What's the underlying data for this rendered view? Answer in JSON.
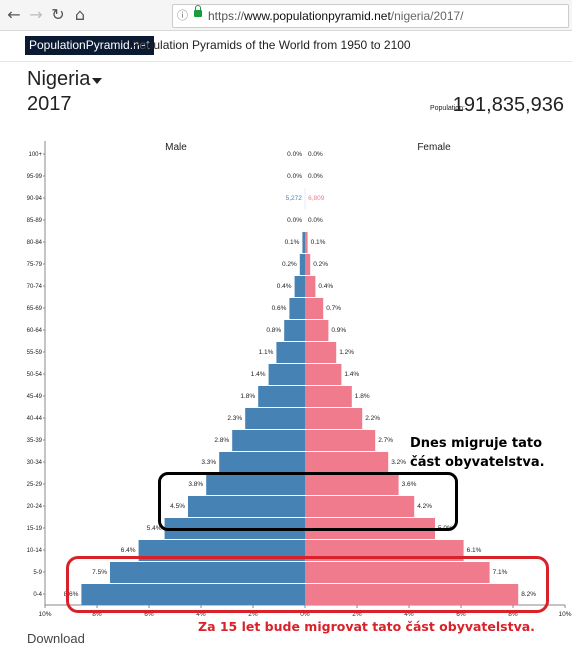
{
  "browser": {
    "back_icon": "arrow-left-icon",
    "forward_icon": "arrow-right-icon",
    "reload_icon": "reload-icon",
    "home_icon": "home-icon",
    "info_icon": "info-icon",
    "lock_icon": "lock-icon",
    "url_scheme": "https://",
    "url_host": "www.populationpyramid.net",
    "url_path": "/nigeria/2017/"
  },
  "site": {
    "brand": "PopulationPyramid.net",
    "tagline": "Population Pyramids of the World from 1950 to 2100"
  },
  "page": {
    "country": "Nigeria",
    "year": "2017",
    "population_label": "Population:",
    "population_value": "191,835,936",
    "below_chart_text": "Download"
  },
  "annotations": {
    "current_migration": "Dnes migruje tato část obyvatelstva.",
    "future_migration": "Za 15 let bude migrovat tato část obyvatelstva."
  },
  "colors": {
    "male": "#4682b4",
    "female": "#ef7b8c",
    "highlight_current": "#000000",
    "highlight_future": "#d9212a"
  },
  "chart_data": {
    "type": "bar",
    "xlabel": "",
    "ylabel": "",
    "series": [
      {
        "name": "Male",
        "values": [
          8.6,
          7.5,
          6.4,
          5.4,
          4.5,
          3.8,
          3.3,
          2.8,
          2.3,
          1.8,
          1.4,
          1.1,
          0.8,
          0.6,
          0.4,
          0.2,
          0.1,
          0.0,
          0.0028,
          0.0,
          0.0
        ]
      },
      {
        "name": "Female",
        "values": [
          8.2,
          7.1,
          6.1,
          5.0,
          4.2,
          3.6,
          3.2,
          2.7,
          2.2,
          1.8,
          1.4,
          1.2,
          0.9,
          0.7,
          0.4,
          0.2,
          0.1,
          0.0,
          0.0035,
          0.0,
          0.0
        ]
      }
    ],
    "categories": [
      "0-4",
      "5-9",
      "10-14",
      "15-19",
      "20-24",
      "25-29",
      "30-34",
      "35-39",
      "40-44",
      "45-49",
      "50-54",
      "55-59",
      "60-64",
      "65-69",
      "70-74",
      "75-79",
      "80-84",
      "85-89",
      "90-94",
      "95-99",
      "100+"
    ],
    "male_labels": [
      "8.6%",
      "7.5%",
      "6.4%",
      "5.4%",
      "4.5%",
      "3.8%",
      "3.3%",
      "2.8%",
      "2.3%",
      "1.8%",
      "1.4%",
      "1.1%",
      "0.8%",
      "0.6%",
      "0.4%",
      "0.2%",
      "0.1%",
      "0.0%",
      "5,272",
      "0.0%",
      "0.0%"
    ],
    "female_labels": [
      "8.2%",
      "7.1%",
      "6.1%",
      "5.0%",
      "4.2%",
      "3.6%",
      "3.2%",
      "2.7%",
      "2.2%",
      "1.8%",
      "1.4%",
      "1.2%",
      "0.9%",
      "0.7%",
      "0.4%",
      "0.2%",
      "0.1%",
      "0.0%",
      "6,809",
      "0.0%",
      "0.0%"
    ],
    "x_ticks": [
      "10%",
      "8%",
      "6%",
      "4%",
      "2%",
      "0%",
      "2%",
      "4%",
      "6%",
      "8%",
      "10%"
    ],
    "xlim": [
      -10,
      10
    ],
    "legend": [
      "Male",
      "Female"
    ]
  }
}
